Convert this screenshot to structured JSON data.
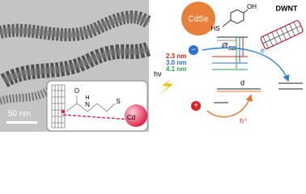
{
  "micrograph": {
    "scale_bar": "50 nm",
    "inset": {
      "oxygen": "O",
      "nitrogen": "N",
      "hydrogen": "H",
      "sulfur": "S",
      "cadmium": "Cd"
    }
  },
  "diagram": {
    "quantum_dot": "CdSe",
    "nanotube": "DWNT",
    "hydroxyl": "OH",
    "thiol": "HS",
    "barrier": "Ø",
    "barrier_sub": "SB",
    "electron": "−",
    "electron_label": "e⁻",
    "hole": "+",
    "hole_label": "h⁺",
    "photon": "hν",
    "defect": "d",
    "sizes": [
      {
        "label": "2.3 nm",
        "color": "#e0201f"
      },
      {
        "label": "3.0 nm",
        "color": "#2f6fd0"
      },
      {
        "label": "4.1 nm",
        "color": "#2ea84a"
      }
    ]
  }
}
